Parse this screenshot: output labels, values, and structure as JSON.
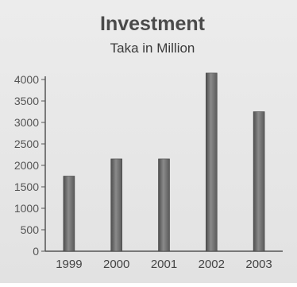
{
  "chart_data": {
    "type": "bar",
    "title": "Investment",
    "subtitle": "Taka in Million",
    "xlabel": "",
    "ylabel": "",
    "categories": [
      "1999",
      "2000",
      "2001",
      "2002",
      "2003"
    ],
    "values": [
      1750,
      2150,
      2150,
      4150,
      3250
    ],
    "ylim": [
      0,
      4000
    ],
    "yticks": [
      0,
      500,
      1000,
      1500,
      2000,
      2500,
      3000,
      3500,
      4000
    ],
    "grid": false,
    "legend": "none",
    "bar_color": "#6f6f6f"
  }
}
